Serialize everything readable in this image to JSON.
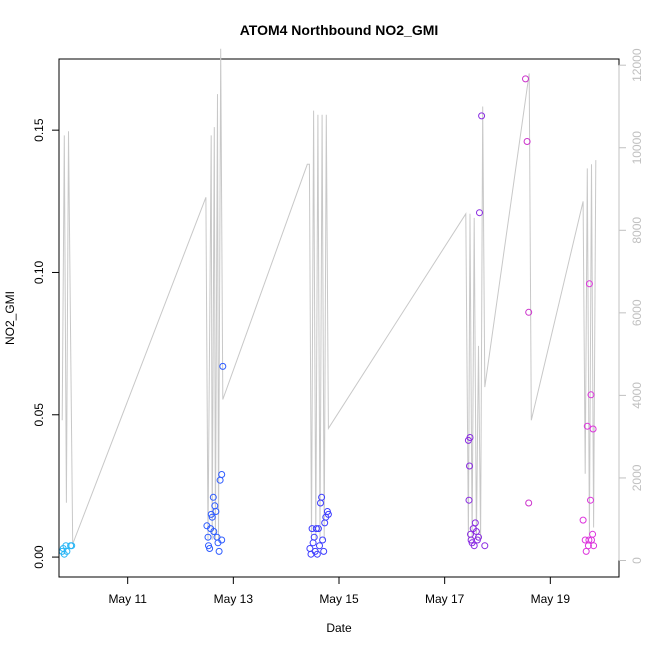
{
  "chart_data": {
    "type": "scatter",
    "title": "ATOM4 Northbound NO2_GMI",
    "xlabel": "Date",
    "ylabel": "NO2_GMI",
    "x_tick_labels": [
      {
        "label": "May 11",
        "day": 11
      },
      {
        "label": "May 13",
        "day": 13
      },
      {
        "label": "May 15",
        "day": 15
      },
      {
        "label": "May 17",
        "day": 17
      },
      {
        "label": "May 19",
        "day": 19
      }
    ],
    "xlim_day": [
      9.7,
      20.3
    ],
    "ylim": [
      -0.007,
      0.175
    ],
    "y_ticks": [
      0.0,
      0.05,
      0.1,
      0.15
    ],
    "y_tick_labels": [
      "0.00",
      "0.05",
      "0.10",
      "0.15"
    ],
    "y2_ticks": [
      0,
      2000,
      4000,
      6000,
      8000,
      10000,
      12000
    ],
    "y2_tick_labels": [
      "0",
      "2000",
      "4000",
      "6000",
      "8000",
      "10000",
      "12000"
    ],
    "y2lim": [
      -400,
      12150
    ],
    "points": [
      {
        "day": 9.76,
        "y": 0.002,
        "color": "#29b6f6"
      },
      {
        "day": 9.78,
        "y": 0.003,
        "color": "#29b6f6"
      },
      {
        "day": 9.8,
        "y": 0.001,
        "color": "#29b6f6"
      },
      {
        "day": 9.83,
        "y": 0.004,
        "color": "#29b6f6"
      },
      {
        "day": 9.85,
        "y": 0.002,
        "color": "#29b6f6"
      },
      {
        "day": 9.92,
        "y": 0.004,
        "color": "#29b6f6"
      },
      {
        "day": 9.94,
        "y": 0.004,
        "color": "#29b6f6"
      },
      {
        "day": 12.5,
        "y": 0.011,
        "color": "#2e5cff"
      },
      {
        "day": 12.52,
        "y": 0.007,
        "color": "#2e5cff"
      },
      {
        "day": 12.53,
        "y": 0.004,
        "color": "#2e5cff"
      },
      {
        "day": 12.55,
        "y": 0.003,
        "color": "#2e5cff"
      },
      {
        "day": 12.57,
        "y": 0.01,
        "color": "#2e5cff"
      },
      {
        "day": 12.58,
        "y": 0.015,
        "color": "#2e5cff"
      },
      {
        "day": 12.6,
        "y": 0.014,
        "color": "#2e5cff"
      },
      {
        "day": 12.62,
        "y": 0.021,
        "color": "#2e5cff"
      },
      {
        "day": 12.63,
        "y": 0.009,
        "color": "#2e5cff"
      },
      {
        "day": 12.65,
        "y": 0.018,
        "color": "#2e5cff"
      },
      {
        "day": 12.67,
        "y": 0.016,
        "color": "#2e5cff"
      },
      {
        "day": 12.69,
        "y": 0.007,
        "color": "#2e5cff"
      },
      {
        "day": 12.71,
        "y": 0.005,
        "color": "#2e5cff"
      },
      {
        "day": 12.73,
        "y": 0.002,
        "color": "#2e5cff"
      },
      {
        "day": 12.75,
        "y": 0.027,
        "color": "#2e5cff"
      },
      {
        "day": 12.78,
        "y": 0.029,
        "color": "#2e5cff"
      },
      {
        "day": 12.8,
        "y": 0.067,
        "color": "#2e5cff"
      },
      {
        "day": 12.78,
        "y": 0.006,
        "color": "#2e5cff"
      },
      {
        "day": 14.45,
        "y": 0.003,
        "color": "#3d3dff"
      },
      {
        "day": 14.47,
        "y": 0.001,
        "color": "#3d3dff"
      },
      {
        "day": 14.49,
        "y": 0.01,
        "color": "#3d3dff"
      },
      {
        "day": 14.51,
        "y": 0.005,
        "color": "#3d3dff"
      },
      {
        "day": 14.53,
        "y": 0.007,
        "color": "#3d3dff"
      },
      {
        "day": 14.55,
        "y": 0.002,
        "color": "#3d3dff"
      },
      {
        "day": 14.57,
        "y": 0.01,
        "color": "#3d3dff"
      },
      {
        "day": 14.59,
        "y": 0.001,
        "color": "#3d3dff"
      },
      {
        "day": 14.61,
        "y": 0.01,
        "color": "#3d3dff"
      },
      {
        "day": 14.63,
        "y": 0.004,
        "color": "#3d3dff"
      },
      {
        "day": 14.65,
        "y": 0.019,
        "color": "#3d3dff"
      },
      {
        "day": 14.67,
        "y": 0.021,
        "color": "#3d3dff"
      },
      {
        "day": 14.69,
        "y": 0.006,
        "color": "#3d3dff"
      },
      {
        "day": 14.71,
        "y": 0.002,
        "color": "#3d3dff"
      },
      {
        "day": 14.73,
        "y": 0.012,
        "color": "#3d3dff"
      },
      {
        "day": 14.75,
        "y": 0.014,
        "color": "#3d3dff"
      },
      {
        "day": 14.78,
        "y": 0.016,
        "color": "#3d3dff"
      },
      {
        "day": 14.8,
        "y": 0.015,
        "color": "#3d3dff"
      },
      {
        "day": 17.45,
        "y": 0.041,
        "color": "#8a2be2"
      },
      {
        "day": 17.48,
        "y": 0.042,
        "color": "#8a2be2"
      },
      {
        "day": 17.47,
        "y": 0.032,
        "color": "#8a2be2"
      },
      {
        "day": 17.46,
        "y": 0.02,
        "color": "#8a2be2"
      },
      {
        "day": 17.49,
        "y": 0.008,
        "color": "#8a2be2"
      },
      {
        "day": 17.5,
        "y": 0.006,
        "color": "#8a2be2"
      },
      {
        "day": 17.52,
        "y": 0.005,
        "color": "#8a2be2"
      },
      {
        "day": 17.54,
        "y": 0.01,
        "color": "#8a2be2"
      },
      {
        "day": 17.56,
        "y": 0.004,
        "color": "#8a2be2"
      },
      {
        "day": 17.58,
        "y": 0.012,
        "color": "#8a2be2"
      },
      {
        "day": 17.6,
        "y": 0.009,
        "color": "#8a2be2"
      },
      {
        "day": 17.62,
        "y": 0.006,
        "color": "#8a2be2"
      },
      {
        "day": 17.64,
        "y": 0.007,
        "color": "#8a2be2"
      },
      {
        "day": 17.66,
        "y": 0.121,
        "color": "#8a2be2"
      },
      {
        "day": 17.7,
        "y": 0.155,
        "color": "#8a2be2"
      },
      {
        "day": 17.76,
        "y": 0.004,
        "color": "#8a2be2"
      },
      {
        "day": 18.53,
        "y": 0.168,
        "color": "#cc33cc"
      },
      {
        "day": 18.56,
        "y": 0.146,
        "color": "#cc33cc"
      },
      {
        "day": 18.59,
        "y": 0.086,
        "color": "#cc33cc"
      },
      {
        "day": 18.59,
        "y": 0.019,
        "color": "#cc33cc"
      },
      {
        "day": 19.62,
        "y": 0.013,
        "color": "#dd33dd"
      },
      {
        "day": 19.66,
        "y": 0.006,
        "color": "#dd33dd"
      },
      {
        "day": 19.68,
        "y": 0.002,
        "color": "#dd33dd"
      },
      {
        "day": 19.7,
        "y": 0.046,
        "color": "#dd33dd"
      },
      {
        "day": 19.72,
        "y": 0.004,
        "color": "#dd33dd"
      },
      {
        "day": 19.73,
        "y": 0.006,
        "color": "#dd33dd"
      },
      {
        "day": 19.74,
        "y": 0.096,
        "color": "#dd33dd"
      },
      {
        "day": 19.76,
        "y": 0.02,
        "color": "#dd33dd"
      },
      {
        "day": 19.77,
        "y": 0.057,
        "color": "#dd33dd"
      },
      {
        "day": 19.78,
        "y": 0.006,
        "color": "#dd33dd"
      },
      {
        "day": 19.8,
        "y": 0.008,
        "color": "#dd33dd"
      },
      {
        "day": 19.81,
        "y": 0.045,
        "color": "#dd33dd"
      },
      {
        "day": 19.82,
        "y": 0.004,
        "color": "#dd33dd"
      }
    ],
    "line_y2": [
      [
        9.76,
        3400
      ],
      [
        9.8,
        10300
      ],
      [
        9.84,
        1400
      ],
      [
        9.88,
        10400
      ],
      [
        9.96,
        400
      ],
      [
        12.48,
        8800
      ],
      [
        12.52,
        500
      ],
      [
        12.58,
        10300
      ],
      [
        12.6,
        500
      ],
      [
        12.64,
        10500
      ],
      [
        12.66,
        500
      ],
      [
        12.7,
        11300
      ],
      [
        12.72,
        500
      ],
      [
        12.76,
        12400
      ],
      [
        12.8,
        3900
      ],
      [
        14.4,
        9600
      ],
      [
        14.44,
        9600
      ],
      [
        14.48,
        500
      ],
      [
        14.52,
        10900
      ],
      [
        14.56,
        500
      ],
      [
        14.6,
        10800
      ],
      [
        14.64,
        500
      ],
      [
        14.68,
        10800
      ],
      [
        14.72,
        500
      ],
      [
        14.76,
        10800
      ],
      [
        14.8,
        3200
      ],
      [
        17.4,
        8400
      ],
      [
        17.45,
        500
      ],
      [
        17.48,
        8400
      ],
      [
        17.52,
        500
      ],
      [
        17.56,
        8300
      ],
      [
        17.6,
        500
      ],
      [
        17.64,
        5200
      ],
      [
        17.68,
        500
      ],
      [
        17.72,
        11000
      ],
      [
        17.76,
        4200
      ],
      [
        18.6,
        11800
      ],
      [
        18.64,
        3400
      ],
      [
        19.62,
        8700
      ],
      [
        19.66,
        2100
      ],
      [
        19.7,
        9500
      ],
      [
        19.74,
        600
      ],
      [
        19.78,
        9600
      ],
      [
        19.82,
        800
      ],
      [
        19.86,
        9700
      ]
    ],
    "grid": false,
    "legend": "none",
    "line_color": "#c8c8c8"
  }
}
